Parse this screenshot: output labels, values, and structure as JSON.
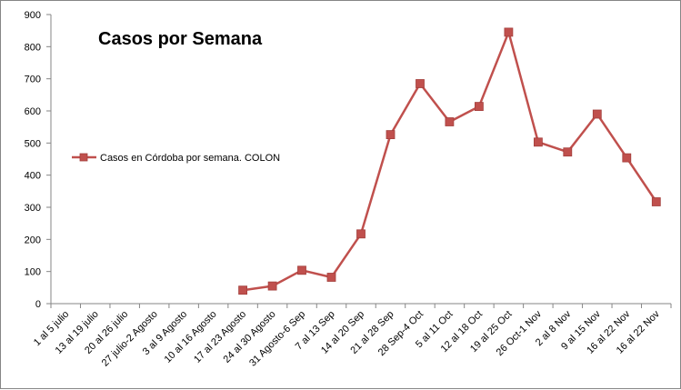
{
  "chart_data": {
    "type": "line",
    "title": "Casos por Semana",
    "xlabel": "",
    "ylabel": "",
    "ylim": [
      0,
      900
    ],
    "ytick_step": 100,
    "grid": false,
    "legend_position": "left",
    "categories": [
      "1 al 5 julio",
      "13 al 19 julio",
      "20 al 26 julio",
      "27 julio-2 Agosto",
      "3 al 9 Agosto",
      "10 al 16 Agosto",
      "17 al 23 Agosto",
      "24 al 30 Agosto",
      "31 Agosto-6 Sep",
      "7 al 13 Sep",
      "14 al 20 Sep",
      "21 al 28 Sep",
      "28 Sep-4 Oct",
      "5 al 11 Oct",
      "12 al 18 Oct",
      "19 al 25 Oct",
      "26 Oct-1 Nov",
      "2 al 8 Nov",
      "9 al 15 Nov",
      "16 al 22 Nov",
      "16 al 22 Nov"
    ],
    "series": [
      {
        "name": "Casos en Córdoba por semana. COLON",
        "color": "#c0504d",
        "values": [
          null,
          null,
          null,
          null,
          null,
          null,
          42,
          55,
          104,
          82,
          217,
          526,
          685,
          566,
          614,
          845,
          503,
          472,
          590,
          454,
          317
        ]
      }
    ]
  }
}
